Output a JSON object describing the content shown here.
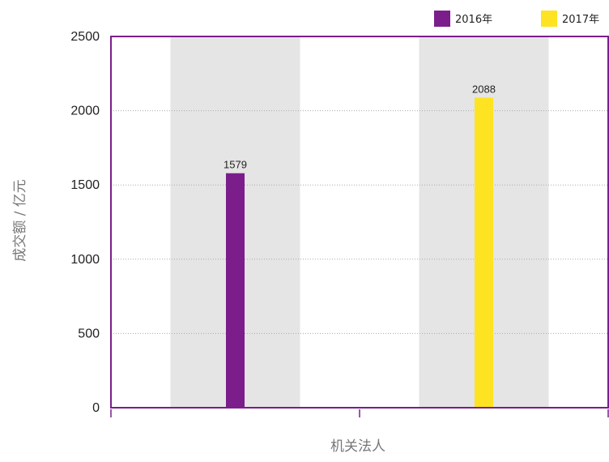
{
  "chart_data": {
    "type": "bar",
    "categories": [
      "",
      ""
    ],
    "xlabel": "机关法人",
    "ylabel": "成交额 / 亿元",
    "ylim": [
      0,
      2500
    ],
    "y_ticks": [
      0,
      500,
      1000,
      1500,
      2000,
      2500
    ],
    "grid": true,
    "legend_position": "top-right",
    "series": [
      {
        "name": "2016年",
        "color": "#7b1e8c",
        "values": [
          1579,
          null
        ],
        "labels": [
          "1579",
          null
        ]
      },
      {
        "name": "2017年",
        "color": "#fde321",
        "values": [
          null,
          2088
        ],
        "labels": [
          null,
          "2088"
        ]
      }
    ],
    "colors": {
      "frame": "#7b1e8c",
      "band": "#e5e5e5",
      "grid": "#aaaaaa"
    }
  }
}
